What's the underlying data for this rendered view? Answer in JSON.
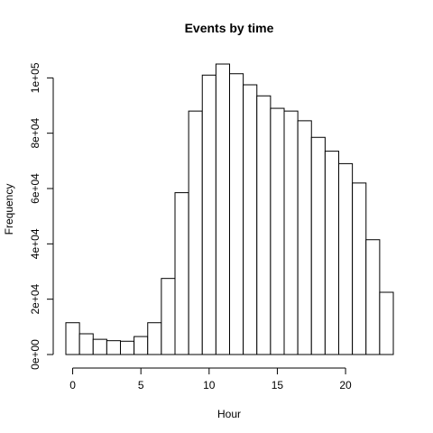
{
  "chart_data": {
    "type": "bar",
    "title": "Events by time",
    "xlabel": "Hour",
    "ylabel": "Frequency",
    "bin_edges": [
      -0.5,
      0.5,
      1.5,
      2.5,
      3.5,
      4.5,
      5.5,
      6.5,
      7.5,
      8.5,
      9.5,
      10.5,
      11.5,
      12.5,
      13.5,
      14.5,
      15.5,
      16.5,
      17.5,
      18.5,
      19.5,
      20.5,
      21.5,
      22.5,
      23.5
    ],
    "values": [
      11500,
      7500,
      5500,
      5000,
      4800,
      6500,
      11500,
      27500,
      58500,
      88000,
      101000,
      105000,
      101500,
      97500,
      93500,
      89000,
      88000,
      84500,
      78500,
      73500,
      69000,
      62000,
      41500,
      22500
    ],
    "xlim": [
      -0.5,
      23.5
    ],
    "ylim": [
      0,
      105000
    ],
    "x_ticks": [
      0,
      5,
      10,
      15,
      20
    ],
    "x_tick_labels": [
      "0",
      "5",
      "10",
      "15",
      "20"
    ],
    "y_ticks": [
      0,
      20000,
      40000,
      60000,
      80000,
      100000
    ],
    "y_tick_labels": [
      "0e+00",
      "2e+04",
      "4e+04",
      "6e+04",
      "8e+04",
      "1e+05"
    ],
    "grid": false
  }
}
